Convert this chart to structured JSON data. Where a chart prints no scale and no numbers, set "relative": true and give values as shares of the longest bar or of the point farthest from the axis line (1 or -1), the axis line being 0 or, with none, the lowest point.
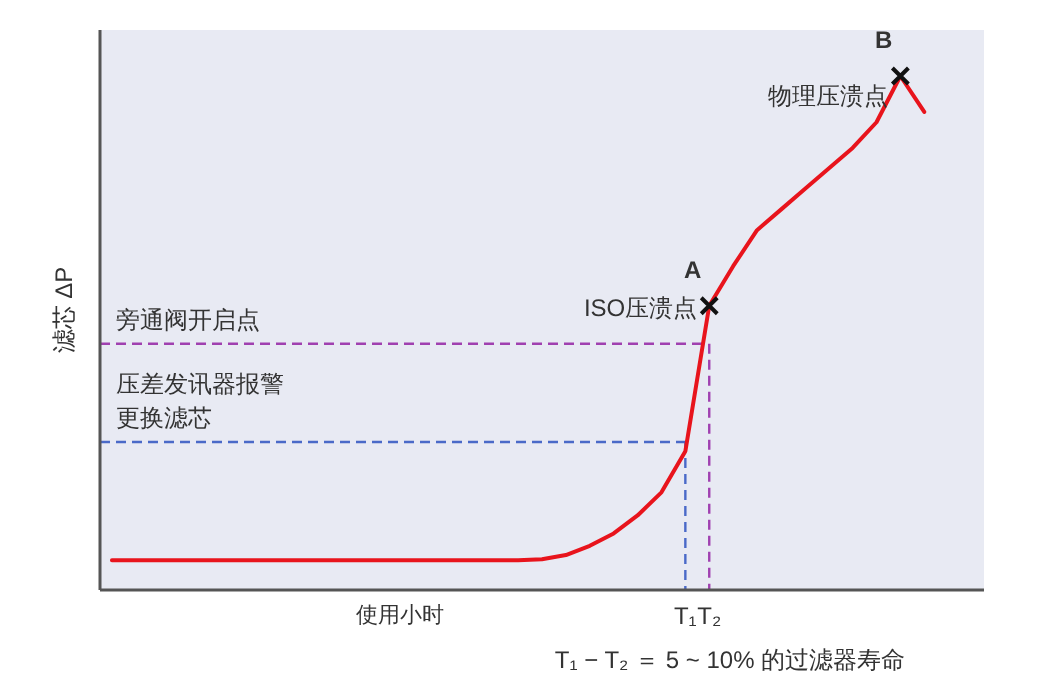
{
  "chart_data": {
    "type": "line",
    "relative": true,
    "ylabel": "滤芯 ΔP",
    "xlabel": "使用小时",
    "categories": [
      null,
      null,
      null,
      null,
      null,
      null,
      null,
      null,
      null,
      null,
      null,
      null,
      null,
      null,
      null,
      null,
      null,
      null,
      null,
      null,
      null,
      null,
      null,
      null,
      "T₁",
      "T₂",
      null,
      null,
      null,
      null,
      null,
      null,
      null,
      null,
      null,
      null,
      null
    ],
    "series": [
      {
        "type": "line",
        "color": "#e8141c",
        "values": [
          0.058,
          0.058,
          0.058,
          0.058,
          0.058,
          0.058,
          0.058,
          0.058,
          0.058,
          0.058,
          0.058,
          0.058,
          0.058,
          0.058,
          0.058,
          0.058,
          0.058,
          0.058,
          0.06,
          0.068,
          0.086,
          0.11,
          0.145,
          0.19,
          0.27,
          0.553,
          0.63,
          0.7,
          0.74,
          0.78,
          0.82,
          0.86,
          0.91,
          1,
          0.93,
          null,
          null
        ]
      },
      {
        "type": "scatter",
        "marker": "cross",
        "color": "#111111",
        "values": [
          null,
          null,
          null,
          null,
          null,
          null,
          null,
          null,
          null,
          null,
          null,
          null,
          null,
          null,
          null,
          null,
          null,
          null,
          null,
          null,
          null,
          null,
          null,
          null,
          null,
          0.553,
          null,
          null,
          null,
          null,
          null,
          null,
          null,
          1,
          null,
          null,
          null
        ]
      }
    ],
    "ref_lines": [
      {
        "axis": "y",
        "value": 0.479,
        "label": "旁通阀开启点",
        "color": "#a040b0",
        "line_style": "dashed"
      },
      {
        "axis": "y",
        "value": 0.288,
        "label": "压差发讯器报警更换滤芯",
        "color": "#4a6ac8",
        "line_style": "dashed"
      },
      {
        "axis": "x",
        "value": "T₂",
        "color": "#a040b0",
        "line_style": "dashed"
      },
      {
        "axis": "x",
        "value": "T₁",
        "color": "#4a6ac8",
        "line_style": "dashed"
      }
    ],
    "annotations": [
      {
        "text": "A",
        "y": 0.553
      },
      "ISO压溃点",
      {
        "text": "B",
        "y": 1
      },
      "物理压溃点",
      "T₁ − T₂ ＝ 5 ~ 10% 的过滤器寿命"
    ]
  }
}
